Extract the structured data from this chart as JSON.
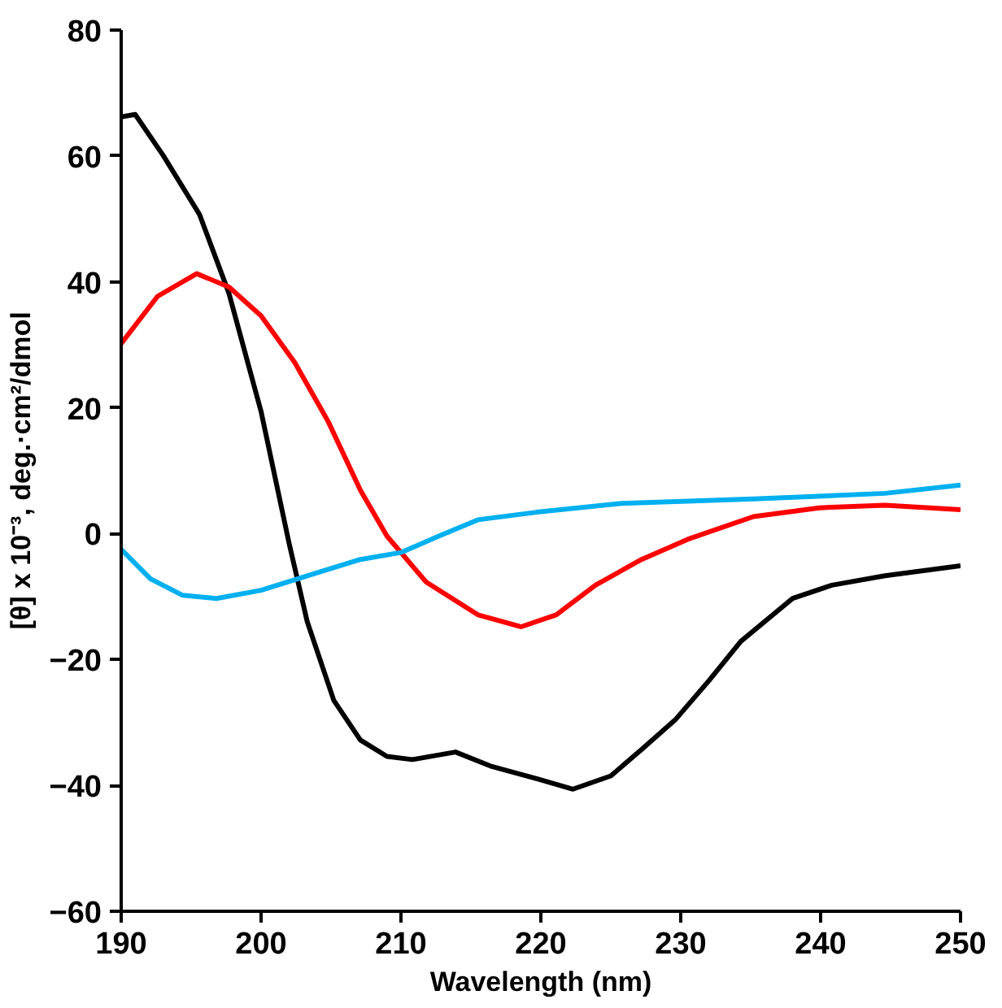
{
  "chart_data": {
    "type": "line",
    "xlabel": "Wavelength (nm)",
    "ylabel": "[θ] x 10⁻³, deg.·cm²/dmol",
    "xlim": [
      190,
      250
    ],
    "ylim": [
      -60,
      80
    ],
    "xticks": [
      190,
      200,
      210,
      220,
      230,
      240,
      250
    ],
    "yticks": [
      -60,
      -40,
      -20,
      0,
      20,
      40,
      60,
      80
    ],
    "grid": false,
    "marker": "none",
    "line_style": "solid",
    "series": [
      {
        "color": "#000000",
        "x": [
          190,
          191,
          193,
          195.6,
          197.7,
          200,
          202,
          203.3,
          205.2,
          207.1,
          209,
          210.8,
          213.9,
          216.5,
          219.8,
          222.3,
          225,
          227.2,
          229.6,
          232,
          234.3,
          238,
          240.8,
          244.6,
          250
        ],
        "values": [
          66.2,
          66.6,
          60.1,
          50.7,
          38.2,
          19.4,
          -1.5,
          -14,
          -26.5,
          -32.8,
          -35.4,
          -35.9,
          -34.7,
          -37,
          -39,
          -40.6,
          -38.5,
          -34.3,
          -29.6,
          -23.4,
          -17.1,
          -10.3,
          -8.2,
          -6.7,
          -5.1
        ]
      },
      {
        "color": "#ff0000",
        "x": [
          190,
          192.6,
          195.4,
          197.7,
          200,
          202.4,
          204.8,
          207.1,
          209,
          211.8,
          215.5,
          218.6,
          221.1,
          223.9,
          227.2,
          230.5,
          235.2,
          239.9,
          244.6,
          250
        ],
        "values": [
          30.2,
          37.7,
          41.3,
          39.2,
          34.6,
          27.2,
          17.8,
          6.9,
          -0.4,
          -7.7,
          -12.9,
          -14.8,
          -12.9,
          -8.2,
          -4.1,
          -0.9,
          2.7,
          4.1,
          4.5,
          3.8
        ]
      },
      {
        "color": "#00b0f0",
        "x": [
          190,
          192.1,
          194.4,
          196.8,
          200,
          203.3,
          207.1,
          210,
          212.7,
          215.5,
          219.7,
          225.8,
          235.2,
          244.6,
          250
        ],
        "values": [
          -2.5,
          -7.2,
          -9.8,
          -10.3,
          -9,
          -6.7,
          -4.1,
          -3,
          -0.4,
          2.2,
          3.4,
          4.8,
          5.5,
          6.4,
          7.7
        ]
      }
    ]
  }
}
